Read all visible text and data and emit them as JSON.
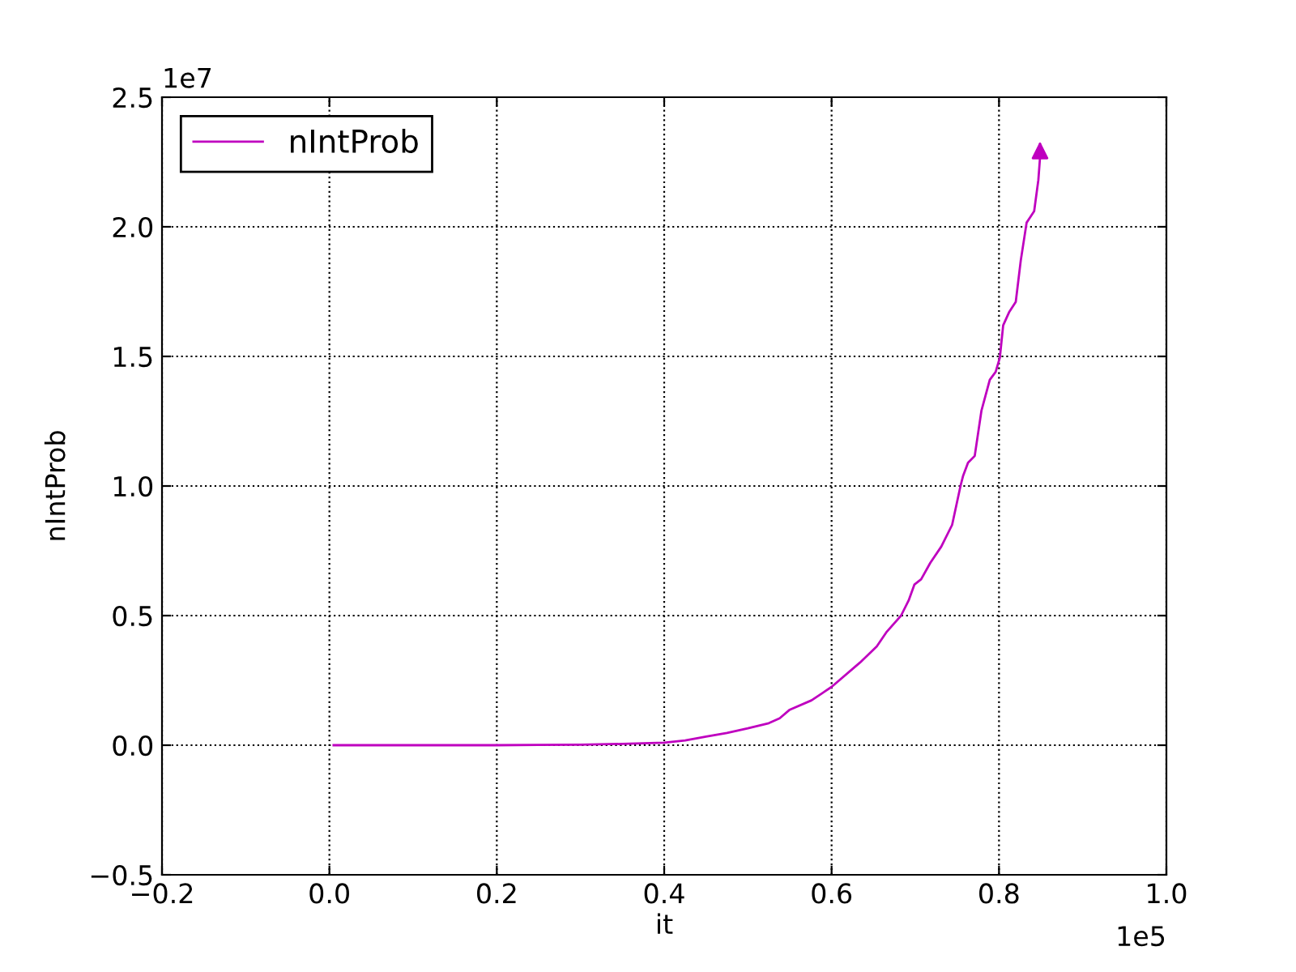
{
  "chart_data": {
    "type": "line",
    "xlabel": "it",
    "ylabel": "nIntProb",
    "x": [
      0.005,
      0.1,
      0.2,
      0.25,
      0.3,
      0.35,
      0.4,
      0.425,
      0.45,
      0.475,
      0.5,
      0.525,
      0.538,
      0.55,
      0.576,
      0.6,
      0.634,
      0.654,
      0.666,
      0.683,
      0.692,
      0.699,
      0.707,
      0.718,
      0.731,
      0.744,
      0.754,
      0.757,
      0.763,
      0.771,
      0.779,
      0.789,
      0.796,
      0.801,
      0.805,
      0.812,
      0.82,
      0.826,
      0.833,
      0.842,
      0.847,
      0.849,
      0.849
    ],
    "series": [
      {
        "name": "nIntProb",
        "color": "#bf00bf",
        "values": [
          0,
          0,
          0,
          0.001,
          0.002,
          0.005,
          0.01,
          0.018,
          0.033,
          0.047,
          0.065,
          0.085,
          0.104,
          0.137,
          0.173,
          0.225,
          0.319,
          0.381,
          0.438,
          0.5,
          0.558,
          0.62,
          0.64,
          0.704,
          0.766,
          0.85,
          1.0,
          1.038,
          1.09,
          1.116,
          1.29,
          1.41,
          1.44,
          1.495,
          1.62,
          1.67,
          1.71,
          1.87,
          2.016,
          2.06,
          2.18,
          2.266,
          2.33
        ]
      }
    ],
    "xlim": [
      -0.2,
      1.0
    ],
    "ylim": [
      -0.5,
      2.5
    ],
    "xticks": [
      {
        "value": -0.2,
        "label": "−0.2"
      },
      {
        "value": 0,
        "label": "0.0"
      },
      0.2,
      0.4,
      0.6,
      0.8,
      {
        "value": 1,
        "label": "1.0"
      }
    ],
    "yticks": [
      {
        "value": -0.5,
        "label": "−0.5"
      },
      {
        "value": 0,
        "label": "0.0"
      },
      0.5,
      {
        "value": 1,
        "label": "1.0"
      },
      1.5,
      {
        "value": 2,
        "label": "2.0"
      },
      2.5
    ],
    "grid": true,
    "legend": "top left",
    "line_style": "solid",
    "annotations": [
      "1e7",
      "1e5"
    ]
  }
}
